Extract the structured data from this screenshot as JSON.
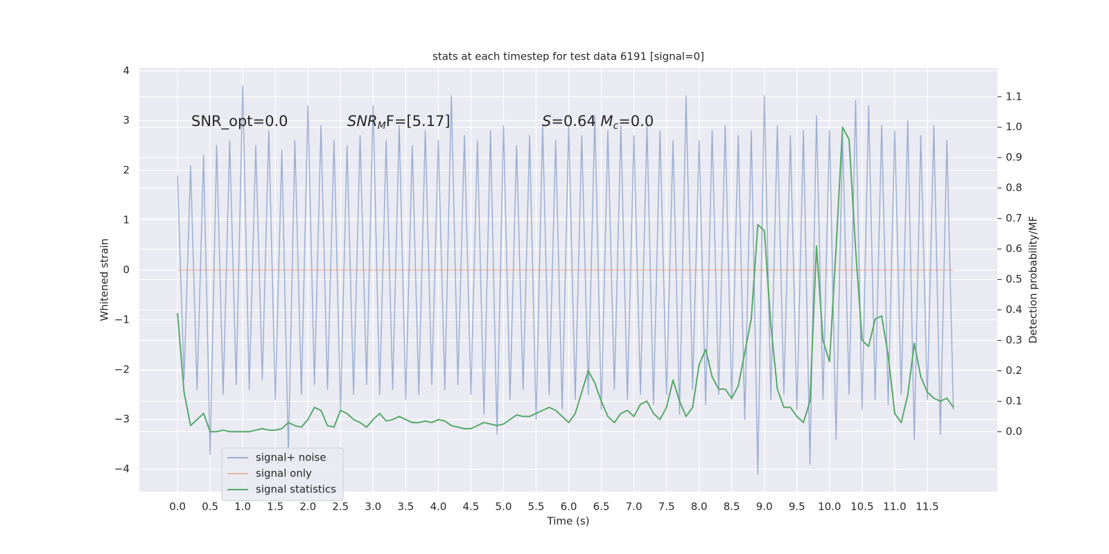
{
  "chart_data": {
    "type": "line",
    "title": "stats at each timestep for test data 6191 [signal=0]",
    "x_label": "Time (s)",
    "y_label": "Whitened strain",
    "y2_label": "Detection probability/MF",
    "annotations": [
      [
        {
          "text": "SNR_opt=0.0",
          "style": "normal"
        }
      ],
      [
        {
          "text": "SNR",
          "style": "italic"
        },
        {
          "text": "M",
          "style": "italic-sub"
        },
        {
          "text": "F=[5.17]",
          "style": "normal"
        }
      ],
      [
        {
          "text": "S",
          "style": "italic"
        },
        {
          "text": "=0.64   ",
          "style": "normal"
        },
        {
          "text": "M",
          "style": "italic"
        },
        {
          "text": "c",
          "style": "italic-sub"
        },
        {
          "text": "=0.0",
          "style": "normal"
        }
      ]
    ],
    "x": [
      0.0,
      0.1,
      0.2,
      0.3,
      0.4,
      0.5,
      0.6,
      0.7,
      0.8,
      0.9,
      1.0,
      1.1,
      1.2,
      1.3,
      1.4,
      1.5,
      1.6,
      1.7,
      1.8,
      1.9,
      2.0,
      2.1,
      2.2,
      2.3,
      2.4,
      2.5,
      2.6,
      2.7,
      2.8,
      2.9,
      3.0,
      3.1,
      3.2,
      3.3,
      3.4,
      3.5,
      3.6,
      3.7,
      3.8,
      3.9,
      4.0,
      4.1,
      4.2,
      4.3,
      4.4,
      4.5,
      4.6,
      4.7,
      4.8,
      4.9,
      5.0,
      5.1,
      5.2,
      5.3,
      5.4,
      5.5,
      5.6,
      5.7,
      5.8,
      5.9,
      6.0,
      6.1,
      6.2,
      6.3,
      6.4,
      6.5,
      6.6,
      6.7,
      6.8,
      6.9,
      7.0,
      7.1,
      7.2,
      7.3,
      7.4,
      7.5,
      7.6,
      7.7,
      7.8,
      7.9,
      8.0,
      8.1,
      8.2,
      8.3,
      8.4,
      8.5,
      8.6,
      8.7,
      8.8,
      8.9,
      9.0,
      9.1,
      9.2,
      9.3,
      9.4,
      9.5,
      9.6,
      9.7,
      9.8,
      9.9,
      10.0,
      10.1,
      10.2,
      10.3,
      10.4,
      10.5,
      10.6,
      10.7,
      10.8,
      10.9,
      11.0,
      11.1,
      11.2,
      11.3,
      11.4,
      11.5,
      11.6,
      11.7,
      11.8,
      11.9
    ],
    "series": [
      {
        "name": "signal+ noise",
        "color": "#4c72b0",
        "opacity": 0.5,
        "values": [
          1.9,
          -2.2,
          2.1,
          -2.4,
          2.3,
          -3.7,
          2.5,
          -2.5,
          2.6,
          -2.3,
          3.7,
          -2.4,
          2.5,
          -2.2,
          2.8,
          -2.6,
          2.4,
          -3.7,
          2.6,
          -2.5,
          3.3,
          -2.3,
          2.9,
          -2.4,
          2.6,
          -2.8,
          2.5,
          -2.5,
          2.7,
          -2.3,
          3.3,
          -2.5,
          2.6,
          -2.4,
          2.9,
          -2.6,
          2.5,
          -2.5,
          2.8,
          -2.3,
          2.6,
          -2.4,
          3.5,
          -2.3,
          2.7,
          -2.5,
          2.6,
          -2.9,
          2.8,
          -3.3,
          2.9,
          -2.6,
          2.5,
          -2.4,
          2.7,
          -3.0,
          2.9,
          -2.5,
          2.6,
          -2.8,
          2.9,
          -2.6,
          2.7,
          -2.5,
          3.1,
          -2.8,
          2.8,
          -2.4,
          2.9,
          -2.6,
          2.7,
          -2.5,
          2.9,
          -2.7,
          2.8,
          -2.5,
          2.6,
          -2.9,
          3.5,
          -2.4,
          2.6,
          -2.7,
          2.8,
          -2.5,
          2.9,
          -2.6,
          2.7,
          -3.0,
          2.8,
          -4.1,
          3.5,
          -2.6,
          2.9,
          -2.5,
          2.7,
          -2.8,
          2.8,
          -3.9,
          3.1,
          -2.6,
          2.8,
          -3.4,
          2.7,
          -2.5,
          3.4,
          -2.8,
          3.3,
          -2.6,
          2.9,
          -2.7,
          2.8,
          -2.5,
          3.0,
          -3.4,
          2.7,
          -2.6,
          2.9,
          -3.3,
          2.6,
          -2.8
        ]
      },
      {
        "name": "signal only",
        "color": "#dd8452",
        "opacity": 0.5,
        "values": [
          0,
          0,
          0,
          0,
          0,
          0,
          0,
          0,
          0,
          0,
          0,
          0,
          0,
          0,
          0,
          0,
          0,
          0,
          0,
          0,
          0,
          0,
          0,
          0,
          0,
          0,
          0,
          0,
          0,
          0,
          0,
          0,
          0,
          0,
          0,
          0,
          0,
          0,
          0,
          0,
          0,
          0,
          0,
          0,
          0,
          0,
          0,
          0,
          0,
          0,
          0,
          0,
          0,
          0,
          0,
          0,
          0,
          0,
          0,
          0,
          0,
          0,
          0,
          0,
          0,
          0,
          0,
          0,
          0,
          0,
          0,
          0,
          0,
          0,
          0,
          0,
          0,
          0,
          0,
          0,
          0,
          0,
          0,
          0,
          0,
          0,
          0,
          0,
          0,
          0,
          0,
          0,
          0,
          0,
          0,
          0,
          0,
          0,
          0,
          0,
          0,
          0,
          0,
          0,
          0,
          0,
          0,
          0,
          0,
          0,
          0,
          0,
          0,
          0,
          0,
          0,
          0,
          0,
          0,
          0
        ]
      },
      {
        "name": "signal statistics",
        "color": "#55a868",
        "opacity": 1,
        "axis": "y2",
        "values": [
          0.39,
          0.13,
          0.02,
          0.04,
          0.06,
          0.0,
          0.0,
          0.005,
          0.0,
          0.0,
          0.0,
          0.0,
          0.005,
          0.01,
          0.005,
          0.005,
          0.01,
          0.03,
          0.02,
          0.015,
          0.04,
          0.08,
          0.07,
          0.02,
          0.015,
          0.07,
          0.06,
          0.04,
          0.03,
          0.015,
          0.04,
          0.06,
          0.035,
          0.04,
          0.05,
          0.04,
          0.03,
          0.03,
          0.035,
          0.03,
          0.04,
          0.035,
          0.02,
          0.015,
          0.01,
          0.01,
          0.02,
          0.03,
          0.025,
          0.02,
          0.025,
          0.04,
          0.055,
          0.05,
          0.05,
          0.06,
          0.07,
          0.08,
          0.07,
          0.05,
          0.03,
          0.06,
          0.13,
          0.2,
          0.16,
          0.1,
          0.05,
          0.03,
          0.06,
          0.07,
          0.05,
          0.09,
          0.1,
          0.06,
          0.04,
          0.08,
          0.17,
          0.1,
          0.05,
          0.08,
          0.22,
          0.27,
          0.18,
          0.14,
          0.14,
          0.11,
          0.15,
          0.26,
          0.37,
          0.68,
          0.66,
          0.35,
          0.14,
          0.08,
          0.08,
          0.05,
          0.03,
          0.1,
          0.61,
          0.3,
          0.23,
          0.6,
          1.0,
          0.96,
          0.6,
          0.3,
          0.28,
          0.37,
          0.38,
          0.25,
          0.06,
          0.03,
          0.12,
          0.29,
          0.18,
          0.13,
          0.11,
          0.1,
          0.11,
          0.08
        ]
      }
    ],
    "xlim": [
      -0.586,
      12.575
    ],
    "ylim": [
      -4.45,
      4.06
    ],
    "y2lim": [
      -0.197,
      1.195
    ],
    "xticks": [
      {
        "value": 0,
        "label": "0.0"
      },
      {
        "value": 0.5,
        "label": "0.5"
      },
      {
        "value": 1,
        "label": "1.0"
      },
      {
        "value": 1.5,
        "label": "1.5"
      },
      {
        "value": 2,
        "label": "2.0"
      },
      {
        "value": 2.5,
        "label": "2.5"
      },
      {
        "value": 3,
        "label": "3.0"
      },
      {
        "value": 3.5,
        "label": "3.5"
      },
      {
        "value": 4,
        "label": "4.0"
      },
      {
        "value": 4.5,
        "label": "4.5"
      },
      {
        "value": 5,
        "label": "5.0"
      },
      {
        "value": 5.5,
        "label": "5.5"
      },
      {
        "value": 6,
        "label": "6.0"
      },
      {
        "value": 6.5,
        "label": "6.5"
      },
      {
        "value": 7,
        "label": "7.0"
      },
      {
        "value": 7.5,
        "label": "7.5"
      },
      {
        "value": 8,
        "label": "8.0"
      },
      {
        "value": 8.5,
        "label": "8.5"
      },
      {
        "value": 9,
        "label": "9.0"
      },
      {
        "value": 9.5,
        "label": "9.5"
      },
      {
        "value": 10,
        "label": "10.0"
      },
      {
        "value": 10.5,
        "label": "10.5"
      },
      {
        "value": 11,
        "label": "11.0"
      },
      {
        "value": 11.5,
        "label": "11.5"
      }
    ],
    "yticks": [
      {
        "value": -4,
        "label": "−4"
      },
      {
        "value": -3,
        "label": "−3"
      },
      {
        "value": -2,
        "label": "−2"
      },
      {
        "value": -1,
        "label": "−1"
      },
      0,
      1,
      2,
      3,
      4
    ],
    "y2ticks": [
      {
        "value": 0,
        "label": "0.0"
      },
      {
        "value": 0.1,
        "label": "0.1"
      },
      {
        "value": 0.2,
        "label": "0.2"
      },
      {
        "value": 0.3,
        "label": "0.3"
      },
      {
        "value": 0.4,
        "label": "0.4"
      },
      {
        "value": 0.5,
        "label": "0.5"
      },
      {
        "value": 0.6,
        "label": "0.6"
      },
      {
        "value": 0.7,
        "label": "0.7"
      },
      {
        "value": 0.8,
        "label": "0.8"
      },
      {
        "value": 0.9,
        "label": "0.9"
      },
      {
        "value": 1.0,
        "label": "1.0"
      },
      {
        "value": 1.1,
        "label": "1.1"
      }
    ],
    "grid": true,
    "legend": "lower left",
    "background": "#eaeaf2"
  }
}
